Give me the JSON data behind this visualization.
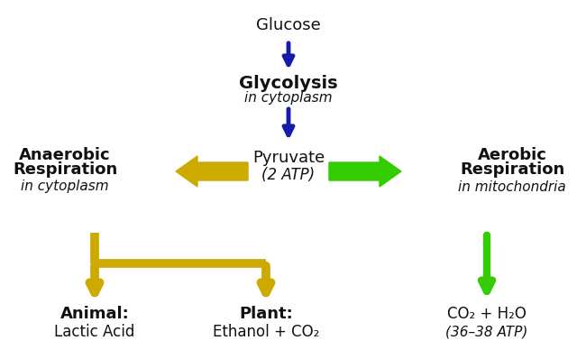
{
  "bg_color": "#ffffff",
  "blue_color": "#1a1aaa",
  "gold_color": "#ccaa00",
  "green_color": "#33cc00",
  "black_color": "#111111",
  "glucose_text": "Glucose",
  "glycolysis_bold": "Glycolysis",
  "glycolysis_italic": "in cytoplasm",
  "pyruvate_text": "Pyruvate",
  "pyruvate_atp": "(2 ATP)",
  "anaerobic_bold1": "Anaerobic",
  "anaerobic_bold2": "Respiration",
  "anaerobic_italic": "in cytoplasm",
  "aerobic_bold1": "Aerobic",
  "aerobic_bold2": "Respiration",
  "aerobic_italic": "in mitochondria",
  "animal_bold": "Animal:",
  "animal_sub": "Lactic Acid",
  "plant_bold": "Plant:",
  "plant_sub": "Ethanol + CO₂",
  "aerobic_product1": "CO₂ + H₂O",
  "aerobic_product2": "(36–38 ATP)"
}
